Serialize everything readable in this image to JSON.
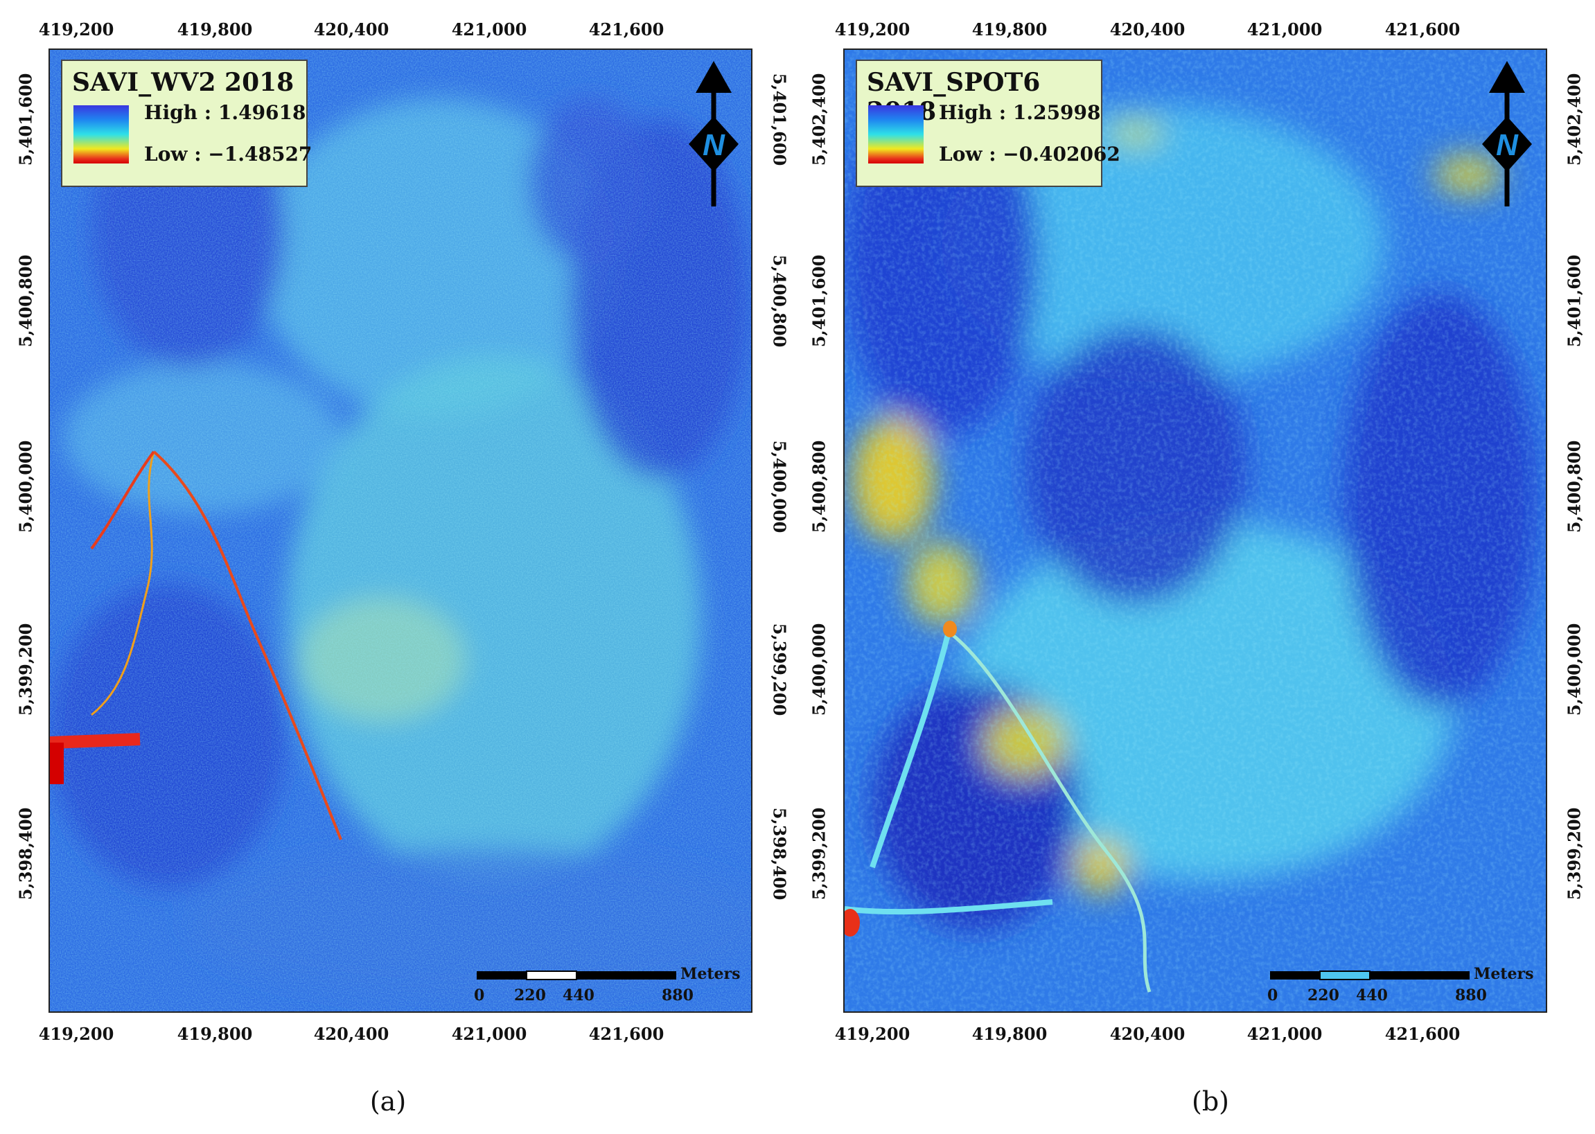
{
  "panels": [
    {
      "id": "a",
      "legend": {
        "title": "SAVI_WV2 2018",
        "high": "High : 1.49618",
        "low": "Low : −1.48527"
      },
      "x_ticks_top": [
        "419,200",
        "419,800",
        "420,400",
        "421,000",
        "421,600"
      ],
      "x_ticks_bottom": [
        "419,200",
        "419,800",
        "420,400",
        "421,000",
        "421,600"
      ],
      "y_ticks_left": [
        "5,401,600",
        "5,400,800",
        "5,400,000",
        "5,399,200",
        "5,398,400"
      ],
      "y_ticks_right": [
        "5,401,600",
        "5,400,800",
        "5,400,000",
        "5,399,200",
        "5,398,400"
      ],
      "scale": {
        "unit": "Meters",
        "labels": [
          "0",
          "220",
          "440",
          "880"
        ]
      },
      "north_label": "N",
      "caption": "(a)"
    },
    {
      "id": "b",
      "legend": {
        "title": "SAVI_SPOT6 2018",
        "high": "High : 1.25998",
        "low": "Low : −0.402062"
      },
      "x_ticks_top": [
        "419,200",
        "419,800",
        "420,400",
        "421,000",
        "421,600"
      ],
      "x_ticks_bottom": [
        "419,200",
        "419,800",
        "420,400",
        "421,000",
        "421,600"
      ],
      "y_ticks_left": [
        "5,402,400",
        "5,401,600",
        "5,400,800",
        "5,400,000",
        "5,399,200"
      ],
      "y_ticks_right": [
        "5,402,400",
        "5,401,600",
        "5,400,800",
        "5,400,000",
        "5,399,200"
      ],
      "scale": {
        "unit": "Meters",
        "labels": [
          "0",
          "220",
          "440",
          "880"
        ]
      },
      "north_label": "N",
      "caption": "(b)"
    }
  ],
  "colors": {
    "legend_background": "#e8f7c8",
    "colormap": [
      "#3a36e0",
      "#1f86f0",
      "#2ee0e8",
      "#f2e81e",
      "#e8301c",
      "#d40000"
    ]
  }
}
